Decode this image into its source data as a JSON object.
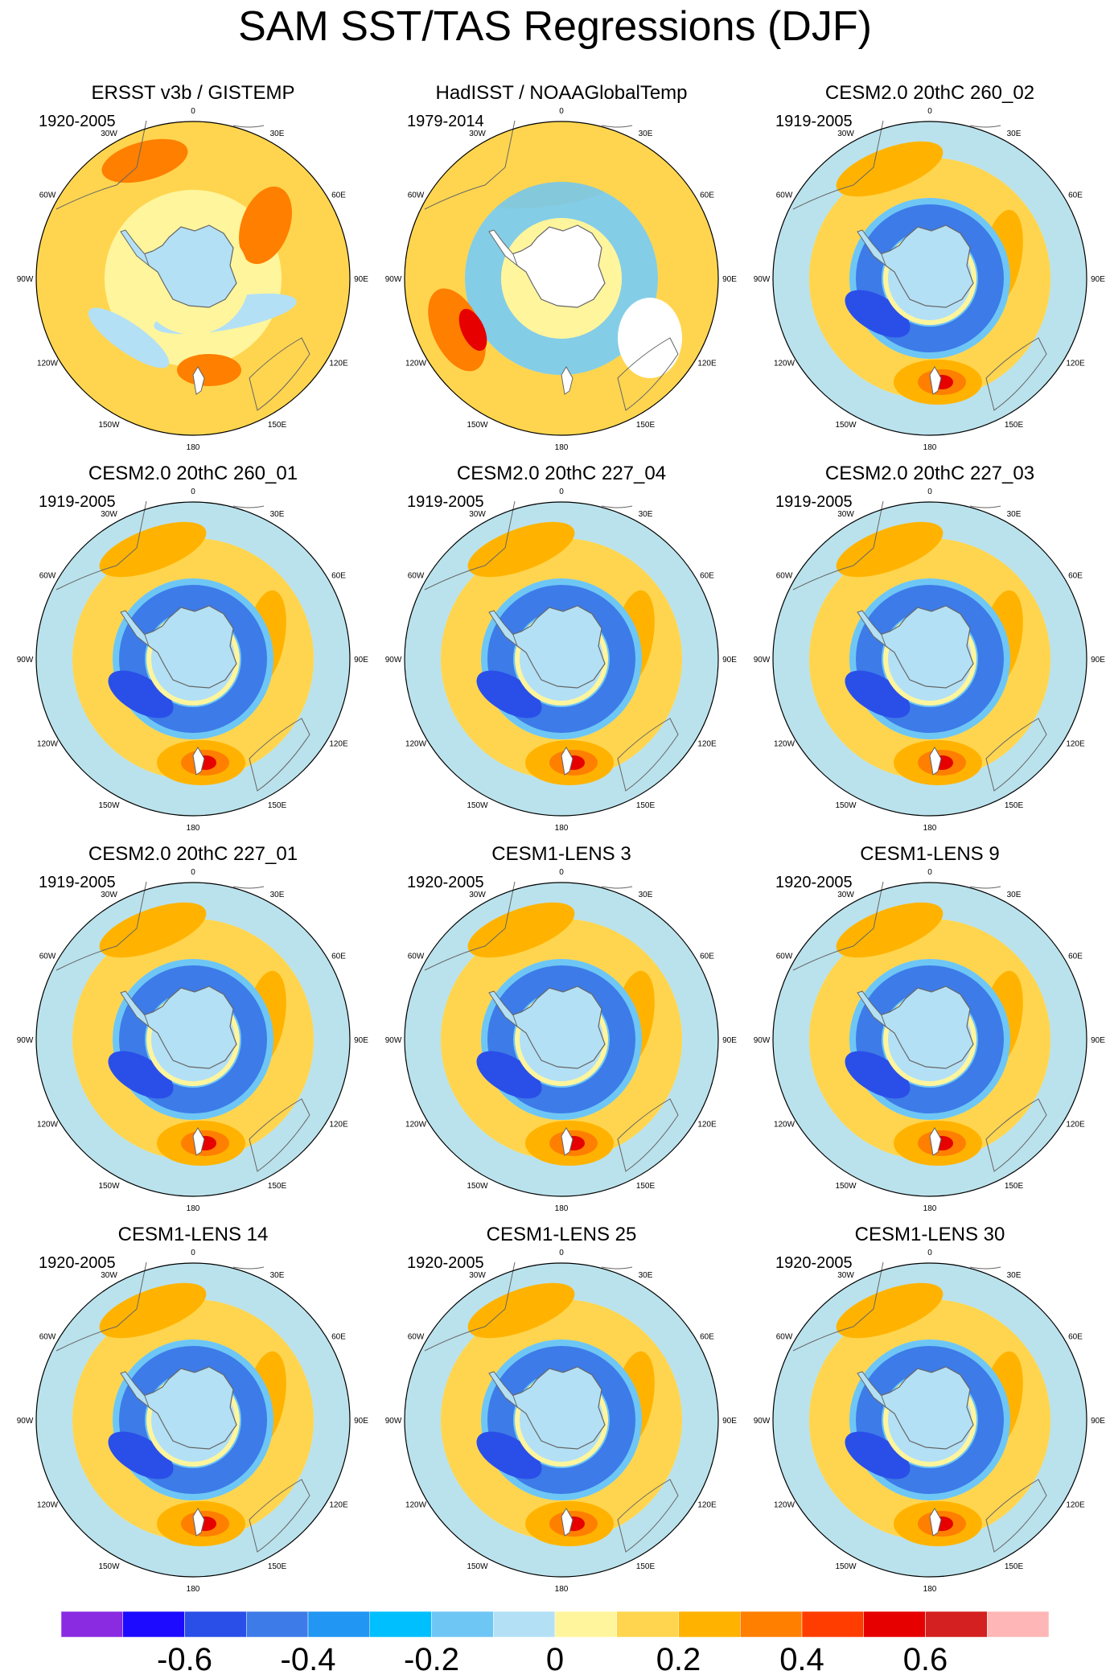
{
  "title": "SAM SST/TAS Regressions (DJF)",
  "longitude_labels": [
    "0",
    "30E",
    "60E",
    "90E",
    "120E",
    "150E",
    "180",
    "150W",
    "120W",
    "90W",
    "60W",
    "30W"
  ],
  "panels": [
    {
      "name": "ERSST v3b / GISTEMP",
      "period": "1920-2005",
      "pattern": "obs1"
    },
    {
      "name": "HadISST / NOAAGlobalTemp",
      "period": "1979-2014",
      "pattern": "obs2"
    },
    {
      "name": "CESM2.0 20thC 260_02",
      "period": "1919-2005",
      "pattern": "model"
    },
    {
      "name": "CESM2.0 20thC 260_01",
      "period": "1919-2005",
      "pattern": "model"
    },
    {
      "name": "CESM2.0 20thC 227_04",
      "period": "1919-2005",
      "pattern": "model"
    },
    {
      "name": "CESM2.0 20thC 227_03",
      "period": "1919-2005",
      "pattern": "model"
    },
    {
      "name": "CESM2.0 20thC 227_01",
      "period": "1919-2005",
      "pattern": "model"
    },
    {
      "name": "CESM1-LENS 3",
      "period": "1920-2005",
      "pattern": "model"
    },
    {
      "name": "CESM1-LENS 9",
      "period": "1920-2005",
      "pattern": "model"
    },
    {
      "name": "CESM1-LENS 14",
      "period": "1920-2005",
      "pattern": "model"
    },
    {
      "name": "CESM1-LENS 25",
      "period": "1920-2005",
      "pattern": "model"
    },
    {
      "name": "CESM1-LENS 30",
      "period": "1920-2005",
      "pattern": "model"
    }
  ],
  "colorbar": {
    "colors": [
      "#8a2be2",
      "#1c0bff",
      "#2a4fe8",
      "#3d7be8",
      "#2196f3",
      "#00bfff",
      "#6ec6f5",
      "#b3e0f5",
      "#fff59d",
      "#ffd54f",
      "#ffb300",
      "#ff7f00",
      "#ff3d00",
      "#e60000",
      "#d42020",
      "#ffb6b6"
    ],
    "labels": [
      "-0.6",
      "-0.4",
      "-0.2",
      "0",
      "0.2",
      "0.4",
      "0.6"
    ]
  },
  "palette": {
    "ocean_neutral": "#b3e0f5",
    "land": "#ffffff",
    "coast": "#666666",
    "blue_mid": "#3d7be8",
    "blue_dark": "#2a4fe8",
    "blue_light": "#6ec6f5",
    "yellow": "#fff59d",
    "orange_light": "#ffd54f",
    "orange": "#ffb300",
    "orange_dark": "#ff7f00",
    "red": "#e60000"
  }
}
